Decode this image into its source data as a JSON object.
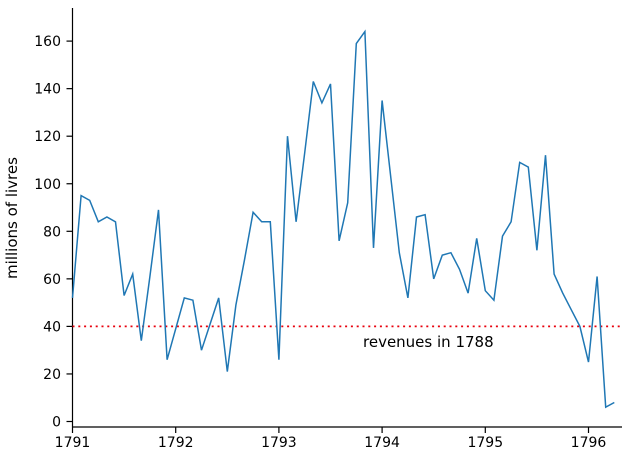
{
  "chart_data": {
    "type": "line",
    "title": "",
    "xlabel": "",
    "ylabel": "millions of livres",
    "x_ticks": [
      1791,
      1792,
      1793,
      1794,
      1795,
      1796
    ],
    "y_ticks": [
      0,
      20,
      40,
      60,
      80,
      100,
      120,
      140,
      160
    ],
    "xlim": [
      1791,
      1796.34
    ],
    "ylim": [
      -2.5,
      171
    ],
    "grid": false,
    "legend": "none",
    "line_color": "#1f77b4",
    "axis_color": "#000000",
    "reference_line": {
      "value": 40,
      "style": "dotted",
      "color": "#e8000d",
      "label": "revenues in 1788"
    },
    "series": [
      {
        "name": "",
        "x_start_year": 1791,
        "x_step_months": 1,
        "values": [
          52,
          95,
          93,
          84,
          86,
          84,
          53,
          62,
          34,
          61,
          89,
          26,
          39,
          52,
          51,
          30,
          41,
          52,
          21,
          49,
          68,
          88,
          84,
          84,
          26,
          120,
          84,
          113,
          143,
          134,
          142,
          76,
          92,
          159,
          164,
          73,
          135,
          103,
          71,
          52,
          86,
          87,
          60,
          70,
          71,
          64,
          54,
          77,
          55,
          51,
          78,
          84,
          109,
          107,
          72,
          112,
          62,
          54,
          47,
          40,
          25,
          61,
          6,
          8
        ]
      }
    ]
  }
}
